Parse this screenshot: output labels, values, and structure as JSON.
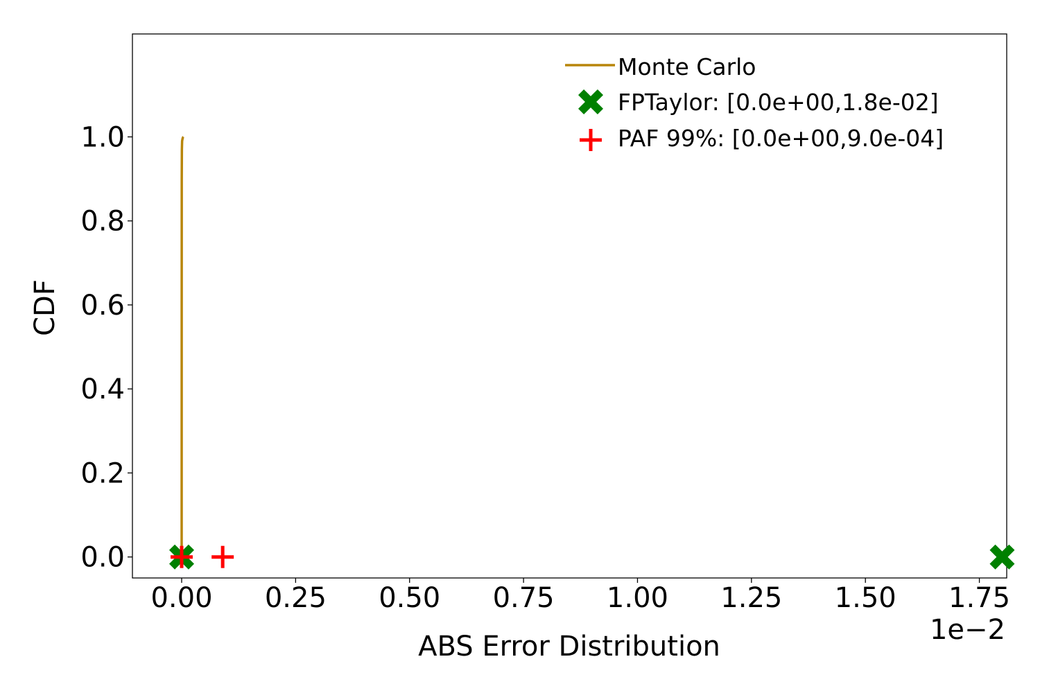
{
  "chart_data": {
    "type": "line",
    "title": "",
    "xlabel": "ABS Error Distribution",
    "ylabel": "CDF",
    "x_offset_label": "1e−2",
    "x_scale_factor": 0.01,
    "xlim": [
      -0.00108,
      0.0181
    ],
    "ylim": [
      -0.05,
      1.245
    ],
    "x_ticks": [
      0.0,
      0.25,
      0.5,
      0.75,
      1.0,
      1.25,
      1.5,
      1.75
    ],
    "x_tick_labels": [
      "0.00",
      "0.25",
      "0.50",
      "0.75",
      "1.00",
      "1.25",
      "1.50",
      "1.75"
    ],
    "y_ticks": [
      0.0,
      0.2,
      0.4,
      0.6,
      0.8,
      1.0
    ],
    "y_tick_labels": [
      "0.0",
      "0.2",
      "0.4",
      "0.6",
      "0.8",
      "1.0"
    ],
    "grid": false,
    "legend_position": "top-right",
    "colors": {
      "monte_carlo": "#b8860b",
      "fptaylor": "#008000",
      "paf": "#ff0000",
      "axes": "#000000"
    },
    "series": [
      {
        "name": "Monte Carlo",
        "kind": "line",
        "x": [
          0.0,
          5e-07,
          1e-06,
          2e-06,
          5e-06,
          1e-05,
          2e-05,
          3e-05,
          4e-05
        ],
        "y": [
          0.0,
          0.3,
          0.6,
          0.9,
          0.97,
          0.99,
          0.996,
          0.999,
          1.0
        ]
      },
      {
        "name": "FPTaylor: [0.0e+00,1.8e-02]",
        "kind": "marker",
        "marker": "X",
        "x": [
          0.0,
          0.018
        ],
        "y": [
          0.0,
          0.0
        ]
      },
      {
        "name": "PAF 99%: [0.0e+00,9.0e-04]",
        "kind": "marker",
        "marker": "+",
        "x": [
          0.0,
          0.0009
        ],
        "y": [
          0.0,
          0.0
        ]
      }
    ]
  }
}
